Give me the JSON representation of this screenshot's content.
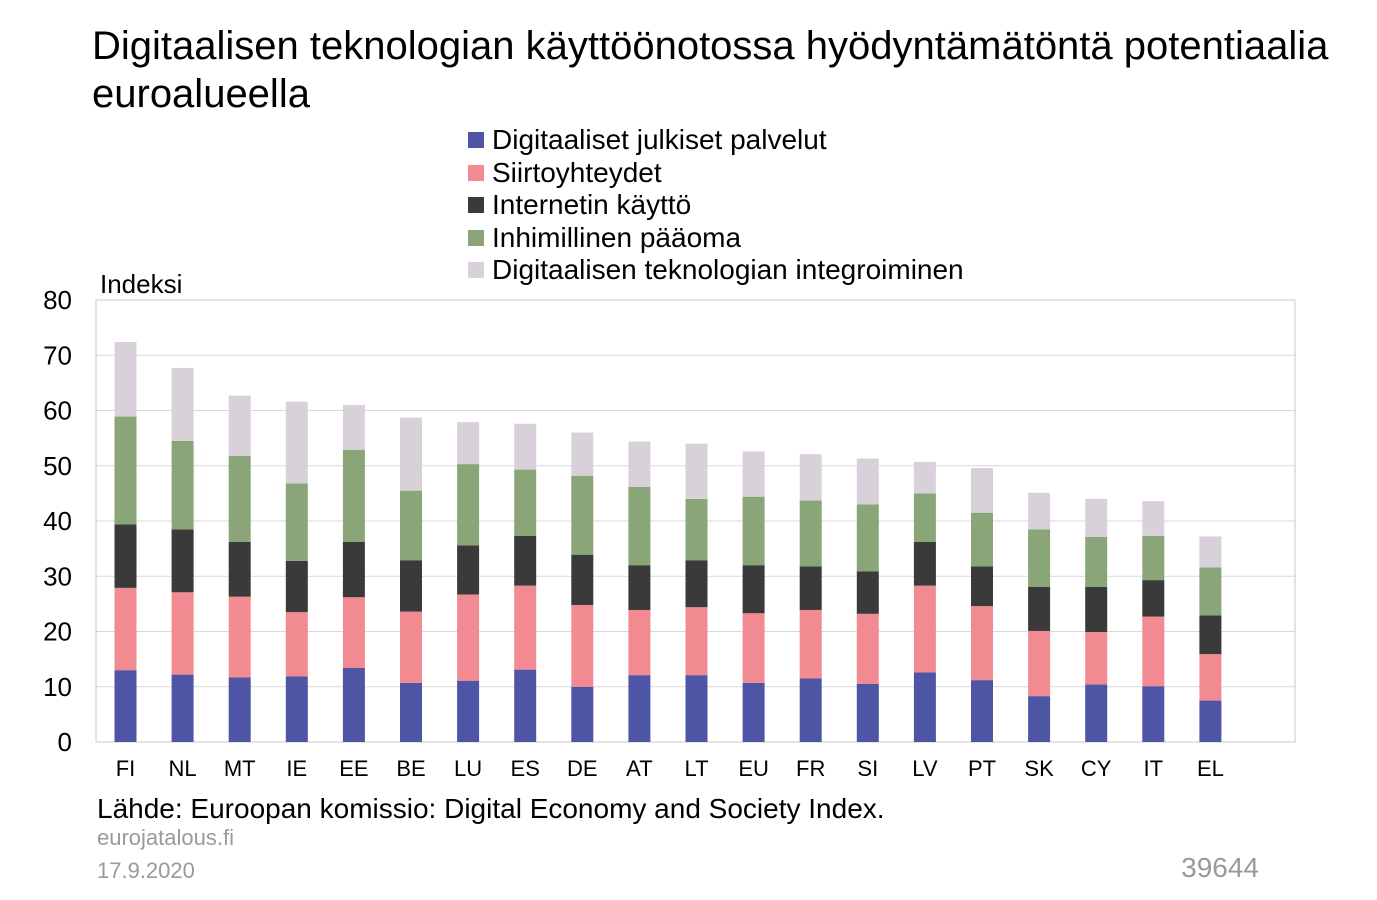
{
  "chart_data": {
    "type": "bar",
    "stacked": true,
    "title": "Digitaalisen teknologian käyttöönotossa hyödyntämätöntä potentiaalia euroalueella",
    "ylabel": "Indeksi",
    "xlabel": "",
    "ylim": [
      0,
      80
    ],
    "yticks": [
      0,
      10,
      20,
      30,
      40,
      50,
      60,
      70,
      80
    ],
    "grid": true,
    "legend_position": "top-center",
    "categories": [
      "FI",
      "NL",
      "MT",
      "IE",
      "EE",
      "BE",
      "LU",
      "ES",
      "DE",
      "AT",
      "LT",
      "EU",
      "FR",
      "SI",
      "LV",
      "PT",
      "SK",
      "CY",
      "IT",
      "EL"
    ],
    "series": [
      {
        "name": "Digitaaliset julkiset palvelut",
        "color": "#4f55a5",
        "values": [
          13.0,
          12.2,
          11.7,
          11.9,
          13.4,
          10.7,
          11.1,
          13.1,
          10.0,
          12.1,
          12.1,
          10.7,
          11.5,
          10.5,
          12.6,
          11.2,
          8.3,
          10.4,
          10.1,
          7.5
        ]
      },
      {
        "name": "Siirtoyhteydet",
        "color": "#f28b91",
        "values": [
          14.9,
          14.9,
          14.6,
          11.6,
          12.8,
          12.9,
          15.6,
          15.2,
          14.8,
          11.8,
          12.3,
          12.6,
          12.4,
          12.7,
          15.7,
          13.4,
          11.8,
          9.5,
          12.6,
          8.4
        ]
      },
      {
        "name": "Internetin käyttö",
        "color": "#3a3a3a",
        "values": [
          11.5,
          11.4,
          9.9,
          9.3,
          10.0,
          9.3,
          8.9,
          9.0,
          9.1,
          8.1,
          8.5,
          8.7,
          7.9,
          7.7,
          7.9,
          7.2,
          8.0,
          8.2,
          6.6,
          7.0
        ]
      },
      {
        "name": "Inhimillinen pääoma",
        "color": "#8aa577",
        "values": [
          19.5,
          16.0,
          15.6,
          14.0,
          16.7,
          12.6,
          14.7,
          12.0,
          14.3,
          14.2,
          11.1,
          12.4,
          11.9,
          12.1,
          8.8,
          9.7,
          10.4,
          9.0,
          8.0,
          8.7
        ]
      },
      {
        "name": "Digitaalisen teknologian integroiminen",
        "color": "#d8d1da",
        "values": [
          13.5,
          13.2,
          10.9,
          14.8,
          8.1,
          13.2,
          7.6,
          8.3,
          7.8,
          8.2,
          10.0,
          8.2,
          8.4,
          8.3,
          5.7,
          8.1,
          6.6,
          6.9,
          6.3,
          5.6
        ]
      }
    ]
  },
  "footer": {
    "source": "Lähde: Euroopan komissio: Digital Economy and Society Index.",
    "site": "eurojatalous.fi",
    "date": "17.9.2020",
    "id": "39644"
  }
}
